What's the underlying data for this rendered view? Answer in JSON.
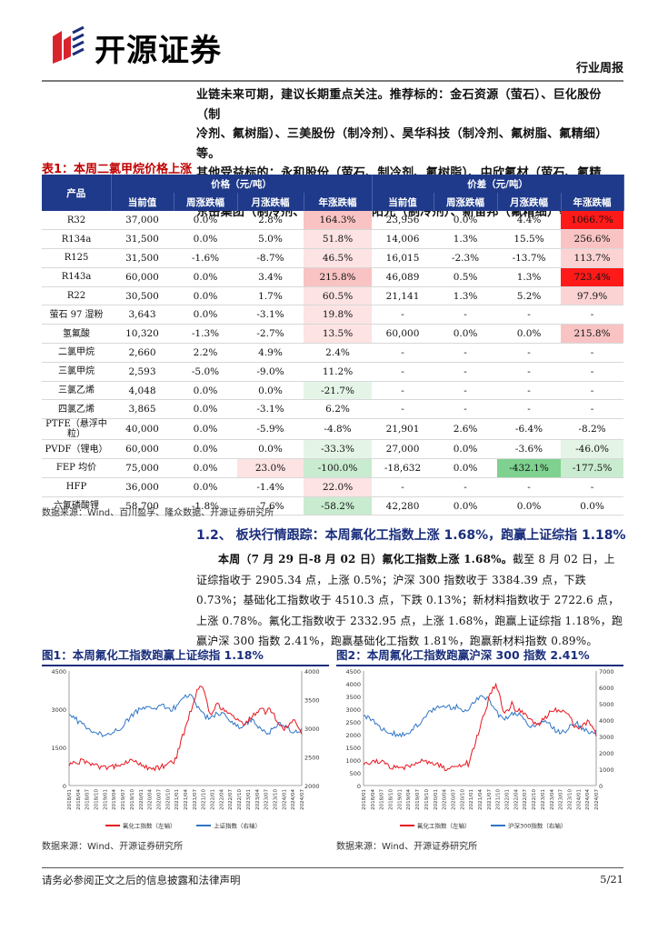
{
  "header": {
    "logo_text": "开源证券",
    "section": "行业周报"
  },
  "intro": {
    "line1": "业链未来可期，建议长期重点关注。推荐标的：金石资源（萤石）、巨化股份（制",
    "line2": "冷剂、氟树脂）、三美股份（制冷剂）、昊华科技（制冷剂、氟树脂、氟精细）等。",
    "line3": "其他受益标的：永和股份（萤石、制冷剂、氟树脂）、中欣氟材（萤石、氟精细）、",
    "line4": "东岳集团（制冷剂、氟树脂）、东阳光（制冷剂）、新宙邦（氟精细）等。"
  },
  "table": {
    "title_num": "表1：",
    "title": "本周二氯甲烷价格上涨",
    "group_price": "价格（元/吨）",
    "group_spread": "价差（元/吨）",
    "col_product": "产品",
    "cols": [
      "当前值",
      "周涨跌幅",
      "月涨跌幅",
      "年涨跌幅",
      "当前值",
      "周涨跌幅",
      "月涨跌幅",
      "年涨跌幅"
    ],
    "rows": [
      {
        "p": "R32",
        "v": [
          "37,000",
          "0.0%",
          "2.8%",
          "164.3%",
          "23,956",
          "0.0%",
          "4.4%",
          "1066.7%"
        ],
        "h": [
          "",
          "",
          "",
          "h-pink1",
          "",
          "",
          "",
          "h-red"
        ]
      },
      {
        "p": "R134a",
        "v": [
          "31,500",
          "0.0%",
          "5.0%",
          "51.8%",
          "14,006",
          "1.3%",
          "15.5%",
          "256.6%"
        ],
        "h": [
          "",
          "",
          "",
          "h-pink2",
          "",
          "",
          "",
          "h-pink1"
        ]
      },
      {
        "p": "R125",
        "v": [
          "31,500",
          "-1.6%",
          "-8.7%",
          "46.5%",
          "16,015",
          "-2.3%",
          "-13.7%",
          "113.7%"
        ],
        "h": [
          "",
          "",
          "",
          "h-pink2",
          "",
          "",
          "",
          "h-pink3"
        ]
      },
      {
        "p": "R143a",
        "v": [
          "60,000",
          "0.0%",
          "3.4%",
          "215.8%",
          "46,089",
          "0.5%",
          "1.3%",
          "723.4%"
        ],
        "h": [
          "",
          "",
          "",
          "h-pink1",
          "",
          "",
          "",
          "h-red"
        ]
      },
      {
        "p": "R22",
        "v": [
          "30,500",
          "0.0%",
          "1.7%",
          "60.5%",
          "21,141",
          "1.3%",
          "5.2%",
          "97.9%"
        ],
        "h": [
          "",
          "",
          "",
          "h-pink2",
          "",
          "",
          "",
          "h-pink3"
        ]
      },
      {
        "p": "萤石 97 湿粉",
        "v": [
          "3,643",
          "0.0%",
          "-3.1%",
          "19.8%",
          "-",
          "-",
          "-",
          "-"
        ],
        "h": [
          "",
          "",
          "",
          "h-pink2",
          "",
          "",
          "",
          ""
        ]
      },
      {
        "p": "氢氟酸",
        "v": [
          "10,320",
          "-1.3%",
          "-2.7%",
          "13.5%",
          "60,000",
          "0.0%",
          "0.0%",
          "215.8%"
        ],
        "h": [
          "",
          "",
          "",
          "h-pink2",
          "",
          "",
          "",
          "h-pink1"
        ]
      },
      {
        "p": "二氯甲烷",
        "v": [
          "2,660",
          "2.2%",
          "4.9%",
          "2.4%",
          "-",
          "-",
          "-",
          "-"
        ],
        "h": [
          "",
          "",
          "",
          "",
          "",
          "",
          "",
          ""
        ]
      },
      {
        "p": "三氯甲烷",
        "v": [
          "2,593",
          "-5.0%",
          "-9.0%",
          "11.2%",
          "-",
          "-",
          "-",
          "-"
        ],
        "h": [
          "",
          "",
          "",
          "",
          "",
          "",
          "",
          ""
        ]
      },
      {
        "p": "三氯乙烯",
        "v": [
          "4,048",
          "0.0%",
          "0.0%",
          "-21.7%",
          "-",
          "-",
          "-",
          "-"
        ],
        "h": [
          "",
          "",
          "",
          "h-green3",
          "",
          "",
          "",
          ""
        ]
      },
      {
        "p": "四氯乙烯",
        "v": [
          "3,865",
          "0.0%",
          "-3.1%",
          "6.2%",
          "-",
          "-",
          "-",
          "-"
        ],
        "h": [
          "",
          "",
          "",
          "",
          "",
          "",
          "",
          ""
        ]
      },
      {
        "p": "PTFE（悬浮中粒）",
        "v": [
          "40,000",
          "0.0%",
          "-5.9%",
          "-4.8%",
          "21,901",
          "2.6%",
          "-6.4%",
          "-8.2%"
        ],
        "h": [
          "",
          "",
          "",
          "",
          "",
          "",
          "",
          ""
        ]
      },
      {
        "p": "PVDF（锂电）",
        "v": [
          "60,000",
          "0.0%",
          "0.0%",
          "-33.3%",
          "27,000",
          "0.0%",
          "-3.6%",
          "-46.0%"
        ],
        "h": [
          "",
          "",
          "",
          "h-green3",
          "",
          "",
          "",
          "h-green3"
        ]
      },
      {
        "p": "FEP 均价",
        "v": [
          "75,000",
          "0.0%",
          "23.0%",
          "-100.0%",
          "-18,632",
          "0.0%",
          "-432.1%",
          "-177.5%"
        ],
        "h": [
          "",
          "",
          "h-pink2",
          "h-green2",
          "",
          "",
          "h-green1",
          "h-green2"
        ]
      },
      {
        "p": "HFP",
        "v": [
          "36,000",
          "0.0%",
          "-1.4%",
          "22.0%",
          "-",
          "-",
          "-",
          "-"
        ],
        "h": [
          "",
          "",
          "",
          "h-pink2",
          "",
          "",
          "",
          ""
        ]
      },
      {
        "p": "六氟磷酸锂",
        "v": [
          "58,700",
          "-1.8%",
          "-7.6%",
          "-58.2%",
          "42,280",
          "0.0%",
          "0.0%",
          "0.0%"
        ],
        "h": [
          "",
          "",
          "",
          "h-green2",
          "",
          "",
          "",
          ""
        ]
      }
    ],
    "source": "数据来源：Wind、百川盈孚、隆众数据、开源证券研究所"
  },
  "section": {
    "title": "1.2、 板块行情跟踪：本周氟化工指数上涨 1.68%，跑赢上证综指 1.18%",
    "para_bold": "本周（7 月 29 日-8 月 02 日）氟化工指数上涨 1.68%。",
    "para_rest": "截至 8 月 02 日，上证综指收于 2905.34 点，上涨 0.5%；沪深 300 指数收于 3384.39 点，下跌 0.73%；基础化工指数收于 4510.3 点，下跌 0.13%；新材料指数收于 2722.6 点，上涨 0.78%。氟化工指数收于 2332.95 点，上涨 1.68%，跑赢上证综指 1.18%，跑赢沪深 300 指数 2.41%，跑赢基础化工指数 1.81%，跑赢新材料指数 0.89%。"
  },
  "fig1": {
    "title": "图1：本周氟化工指数跑赢上证综指 1.18%",
    "left_ticks": [
      "4500",
      "3000",
      "1500",
      "0"
    ],
    "right_ticks": [
      "4000",
      "3500",
      "3000",
      "2500",
      "2000"
    ],
    "x_ticks": [
      "2018/01",
      "2018/04",
      "2018/07",
      "2018/10",
      "2019/01",
      "2019/04",
      "2019/07",
      "2019/10",
      "2020/01",
      "2020/04",
      "2020/07",
      "2020/10",
      "2021/01",
      "2021/04",
      "2021/07",
      "2021/10",
      "2022/01",
      "2022/04",
      "2022/07",
      "2022/10",
      "2023/01",
      "2023/04",
      "2023/07",
      "2023/10",
      "2024/01",
      "2024/04",
      "2024/07"
    ],
    "legend1": "氟化工指数（左轴）",
    "legend2": "上证指数（右轴）",
    "color1": "#e8141d",
    "color2": "#2e75c8",
    "source": "数据来源：Wind、开源证券研究所"
  },
  "fig2": {
    "title": "图2：本周氟化工指数跑赢沪深 300 指数 2.41%",
    "left_ticks": [
      "4500",
      "4000",
      "3500",
      "3000",
      "2500",
      "2000",
      "1500",
      "1000",
      "500",
      "0"
    ],
    "right_ticks": [
      "7000",
      "6000",
      "5000",
      "4000",
      "3000",
      "2000",
      "1000",
      "0"
    ],
    "x_ticks": [
      "2018/01",
      "2018/04",
      "2018/07",
      "2018/10",
      "2019/01",
      "2019/04",
      "2019/07",
      "2019/10",
      "2020/01",
      "2020/04",
      "2020/07",
      "2020/10",
      "2021/01",
      "2021/04",
      "2021/07",
      "2021/10",
      "2022/01",
      "2022/04",
      "2022/07",
      "2022/10",
      "2023/01",
      "2023/04",
      "2023/07",
      "2023/10",
      "2024/01",
      "2024/04",
      "2024/07"
    ],
    "legend1": "氟化工指数（左轴）",
    "legend2": "沪深300指数（右轴）",
    "color1": "#e8141d",
    "color2": "#2e75c8",
    "source": "数据来源：Wind、开源证券研究所"
  },
  "footer": {
    "left": "请务必参阅正文之后的信息披露和法律声明",
    "right": "5/21"
  }
}
